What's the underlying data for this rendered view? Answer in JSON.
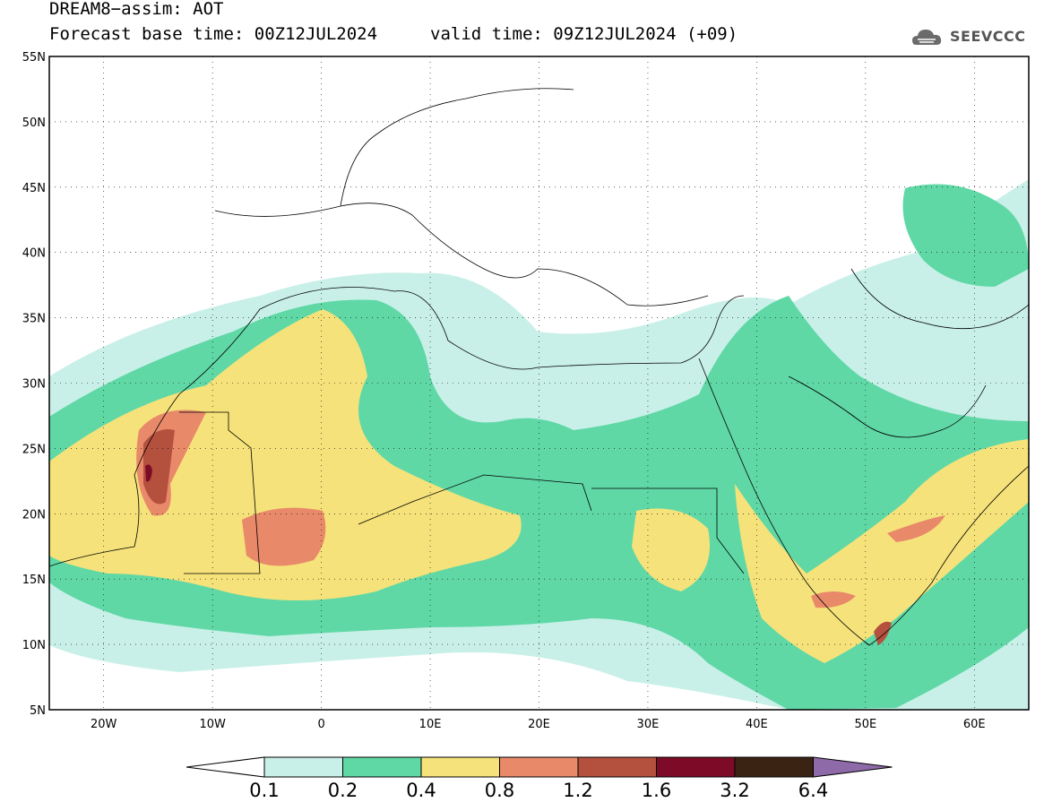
{
  "header": {
    "title_line1": "DREAM8−assim: AOT",
    "title_line2": "Forecast base time: 00Z12JUL2024",
    "valid_time": "valid time: 09Z12JUL2024 (+09)",
    "logo_text": "SEEVCCC",
    "logo_icon": "cloud-icon"
  },
  "map": {
    "lat_labels": [
      "55N",
      "50N",
      "45N",
      "40N",
      "35N",
      "30N",
      "25N",
      "20N",
      "15N",
      "10N",
      "5N"
    ],
    "lon_labels": [
      "20W",
      "10W",
      "0",
      "10E",
      "20E",
      "30E",
      "40E",
      "50E",
      "60E"
    ],
    "lon_range": [
      -25,
      65
    ],
    "lat_range": [
      5,
      55
    ],
    "gridlines": "dotted"
  },
  "colorbar": {
    "labels": [
      "0.1",
      "0.2",
      "0.4",
      "0.8",
      "1.2",
      "1.6",
      "3.2",
      "6.4"
    ],
    "colors": [
      "#ffffff",
      "#c9f0e8",
      "#5fd8a6",
      "#f6e27a",
      "#e8896a",
      "#b4503e",
      "#7d0b27",
      "#3b2314",
      "#8e6aa8"
    ]
  }
}
